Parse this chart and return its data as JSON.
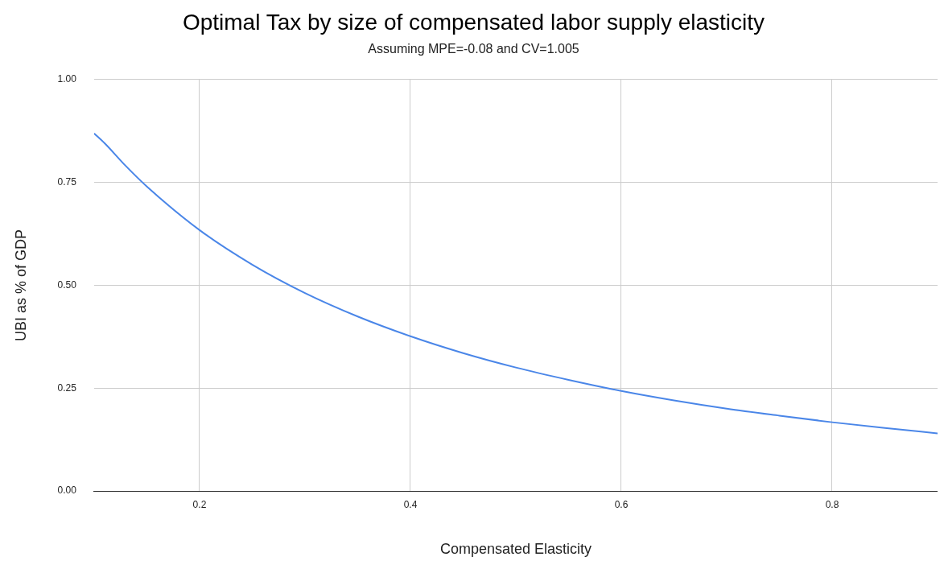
{
  "chart_data": {
    "type": "line",
    "title": "Optimal Tax by size of compensated labor supply elasticity",
    "subtitle": "Assuming MPE=-0.08 and CV=1.005",
    "xlabel": "Compensated Elasticity",
    "ylabel": "UBI as % of GDP",
    "x": [
      0.1,
      0.11,
      0.13,
      0.15,
      0.2,
      0.25,
      0.3,
      0.35,
      0.4,
      0.45,
      0.5,
      0.55,
      0.6,
      0.65,
      0.7,
      0.75,
      0.8,
      0.85,
      0.9
    ],
    "series": [
      {
        "color": "#4a86e8",
        "values": [
          0.869,
          0.845,
          0.79,
          0.74,
          0.634,
          0.55,
          0.481,
          0.424,
          0.376,
          0.335,
          0.3,
          0.27,
          0.243,
          0.22,
          0.2,
          0.183,
          0.167,
          0.153,
          0.14
        ]
      }
    ],
    "xlim": [
      0.1,
      0.9
    ],
    "xticks": [
      0.2,
      0.4,
      0.6,
      0.8
    ],
    "ylim": [
      0,
      1
    ],
    "yticks": [
      {
        "value": 0,
        "label": "0.00"
      },
      {
        "value": 0.25,
        "label": "0.25"
      },
      {
        "value": 0.5,
        "label": "0.50"
      },
      {
        "value": 0.75,
        "label": "0.75"
      },
      {
        "value": 1,
        "label": "1.00"
      }
    ],
    "grid": true,
    "legend": false,
    "marker": "none",
    "line_style": "solid"
  }
}
